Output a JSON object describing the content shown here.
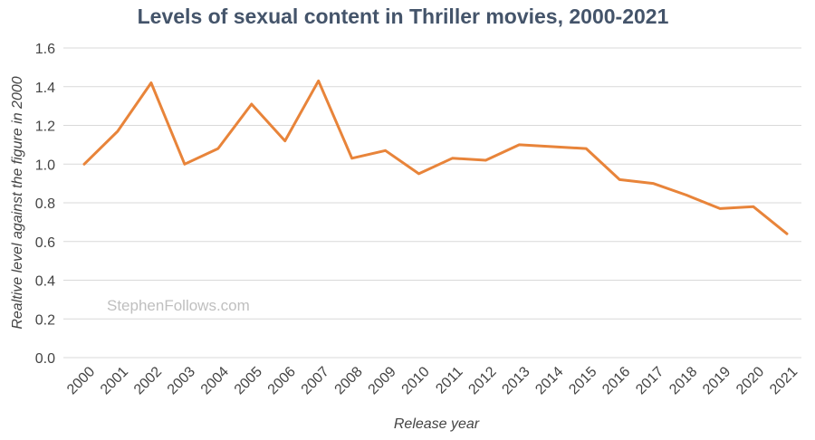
{
  "watermark": "StephenFollows.com",
  "chart_data": {
    "type": "line",
    "title": "Levels of sexual content in Thriller movies, 2000-2021",
    "xlabel": "Release year",
    "ylabel": "Realtive level against the figure in 2000",
    "ylim": [
      0,
      1.6
    ],
    "y_ticks": [
      "0.0",
      "0.2",
      "0.4",
      "0.6",
      "0.8",
      "1.0",
      "1.2",
      "1.4",
      "1.6"
    ],
    "grid": true,
    "line_color": "#e8843a",
    "categories": [
      "2000",
      "2001",
      "2002",
      "2003",
      "2004",
      "2005",
      "2006",
      "2007",
      "2008",
      "2009",
      "2010",
      "2011",
      "2012",
      "2013",
      "2014",
      "2015",
      "2016",
      "2017",
      "2018",
      "2019",
      "2020",
      "2021"
    ],
    "series": [
      {
        "values": [
          1.0,
          1.17,
          1.42,
          1.0,
          1.08,
          1.31,
          1.12,
          1.43,
          1.03,
          1.07,
          0.95,
          1.03,
          1.02,
          1.1,
          1.09,
          1.08,
          0.92,
          0.9,
          0.84,
          0.77,
          0.78,
          0.64
        ]
      }
    ]
  }
}
